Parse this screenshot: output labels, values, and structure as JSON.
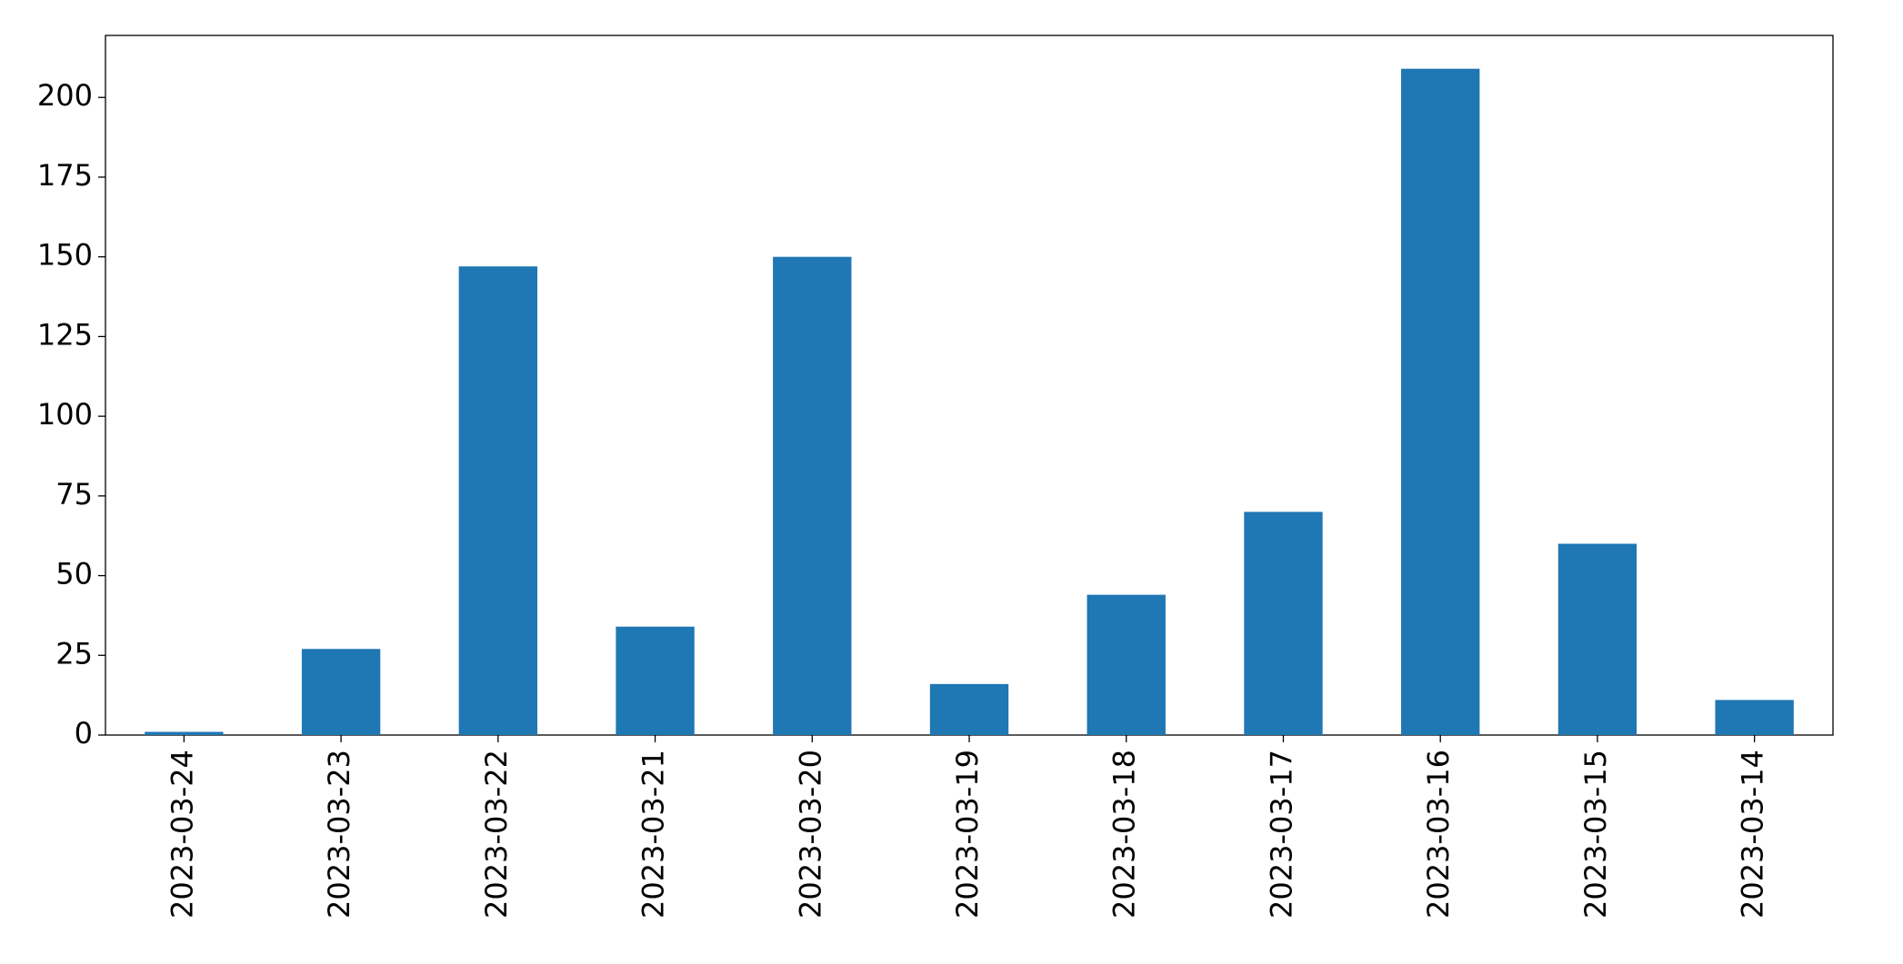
{
  "chart_data": {
    "type": "bar",
    "categories": [
      "2023-03-24",
      "2023-03-23",
      "2023-03-22",
      "2023-03-21",
      "2023-03-20",
      "2023-03-19",
      "2023-03-18",
      "2023-03-17",
      "2023-03-16",
      "2023-03-15",
      "2023-03-14"
    ],
    "values": [
      1,
      27,
      147,
      34,
      150,
      16,
      44,
      70,
      209,
      60,
      11
    ],
    "color": "#1f77b4",
    "ylim": [
      0,
      219.45
    ],
    "yticks": [
      0,
      25,
      50,
      75,
      100,
      125,
      150,
      175,
      200
    ],
    "grid": false
  }
}
